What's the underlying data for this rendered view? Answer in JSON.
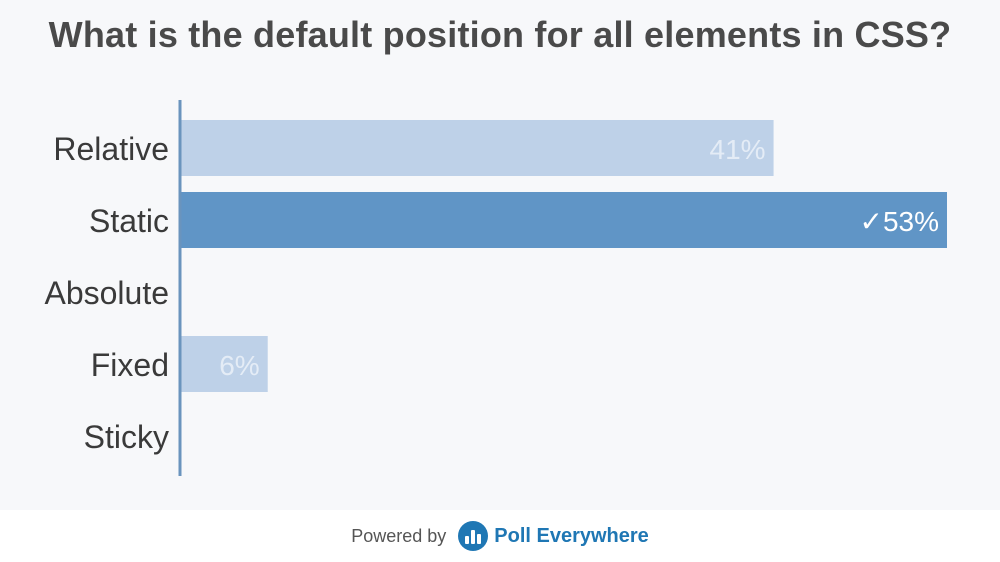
{
  "poll": {
    "title": "What is the default position for all elements in CSS?"
  },
  "chart_data": {
    "type": "bar",
    "orientation": "horizontal",
    "title": "What is the default position for all elements in CSS?",
    "categories": [
      "Relative",
      "Static",
      "Absolute",
      "Fixed",
      "Sticky"
    ],
    "values": [
      41,
      53,
      0,
      6,
      0
    ],
    "value_labels": [
      "41%",
      "53%",
      "",
      "6%",
      ""
    ],
    "correct_index": 1,
    "correct_mark": "✓",
    "xlim": [
      0,
      60
    ],
    "grid": false,
    "colors": {
      "bar": "#bed1e8",
      "bar_correct": "#6095c6",
      "label_on_light": "#e4ecf6",
      "label_on_dark": "#ffffff",
      "axis": "#6a94bd",
      "category_text": "#3a3a3a"
    }
  },
  "footer": {
    "powered_by": "Powered by",
    "brand": "Poll Everywhere"
  }
}
